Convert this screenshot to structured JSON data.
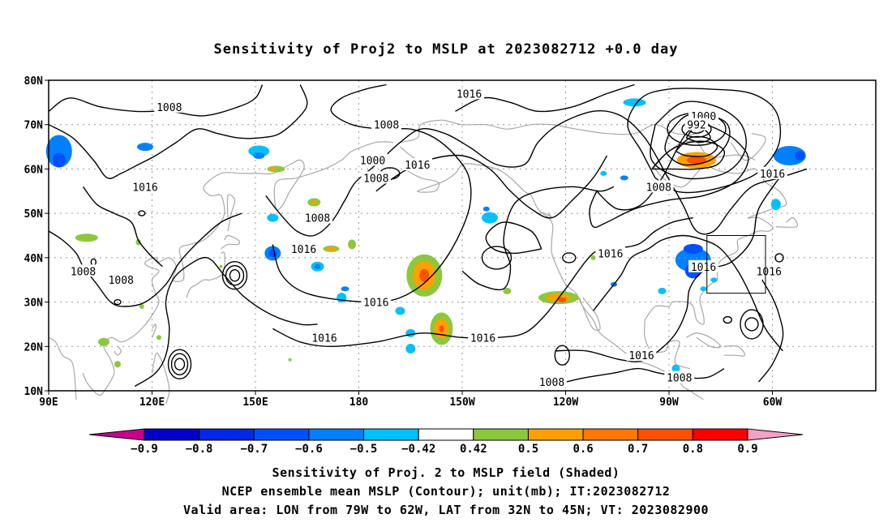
{
  "title": "Sensitivity of Proj2 to MSLP at 2023082712 +0.0 day",
  "map": {
    "lat_labels": [
      "80N",
      "70N",
      "60N",
      "50N",
      "40N",
      "30N",
      "20N",
      "10N"
    ],
    "lon_labels": [
      "90E",
      "120E",
      "150E",
      "180",
      "150W",
      "120W",
      "90W",
      "60W"
    ],
    "valid_area": {
      "lon": [
        "79W",
        "62W"
      ],
      "lat": [
        "32N",
        "45N"
      ]
    },
    "contour_labels": [
      {
        "text": "1008",
        "lon": 125,
        "lat": 74
      },
      {
        "text": "1016",
        "lon": -148,
        "lat": 77
      },
      {
        "text": "1008",
        "lon": -172,
        "lat": 70
      },
      {
        "text": "1000",
        "lon": -80,
        "lat": 72
      },
      {
        "text": "992",
        "lon": -82,
        "lat": 70
      },
      {
        "text": "1000",
        "lon": -176,
        "lat": 62
      },
      {
        "text": "1008",
        "lon": -175,
        "lat": 58
      },
      {
        "text": "1016",
        "lon": -163,
        "lat": 61
      },
      {
        "text": "1008",
        "lon": -93,
        "lat": 56
      },
      {
        "text": "1016",
        "lon": -60,
        "lat": 59
      },
      {
        "text": "1016",
        "lon": 118,
        "lat": 56
      },
      {
        "text": "1008",
        "lon": 168,
        "lat": 49
      },
      {
        "text": "1016",
        "lon": 164,
        "lat": 42
      },
      {
        "text": "1016",
        "lon": -107,
        "lat": 41
      },
      {
        "text": "1016",
        "lon": -80,
        "lat": 38
      },
      {
        "text": "1016",
        "lon": -61,
        "lat": 37
      },
      {
        "text": "1008",
        "lon": 100,
        "lat": 37
      },
      {
        "text": "1008",
        "lon": 111,
        "lat": 35
      },
      {
        "text": "1016",
        "lon": -175,
        "lat": 30
      },
      {
        "text": "1016",
        "lon": 170,
        "lat": 22
      },
      {
        "text": "1016",
        "lon": -144,
        "lat": 22
      },
      {
        "text": "1016",
        "lon": -98,
        "lat": 18
      },
      {
        "text": "1008",
        "lon": -87,
        "lat": 13
      },
      {
        "text": "1008",
        "lon": -124,
        "lat": 12
      }
    ]
  },
  "colorbar": {
    "colors": [
      "#c8008c",
      "#0000c8",
      "#0028e6",
      "#0050ff",
      "#0080ff",
      "#00c0ff",
      "#ffffff",
      "#8cc83c",
      "#ffa000",
      "#ff7800",
      "#ff5000",
      "#ff0000",
      "#f4a0c8"
    ],
    "labels": [
      "−0.9",
      "−0.8",
      "−0.7",
      "−0.6",
      "−0.5",
      "−0.42",
      "0.42",
      "0.5",
      "0.6",
      "0.7",
      "0.8",
      "0.9"
    ]
  },
  "caption": {
    "line1": "Sensitivity of Proj. 2 to MSLP field (Shaded)",
    "line2": "NCEP ensemble mean MSLP (Contour); unit(mb); IT:2023082712",
    "line3": "Valid area: LON from 79W to 62W, LAT from 32N to 45N; VT: 2023082900"
  }
}
